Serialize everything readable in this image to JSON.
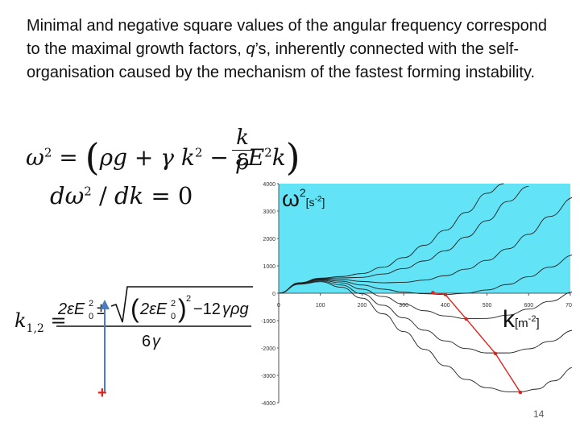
{
  "slide": {
    "paragraph_part1": "Minimal and negative square values of the angular frequency correspond to the maximal growth factors, ",
    "paragraph_q": "q",
    "paragraph_part2": "’s, inherently connected with the self-organisation caused by the mechanism of the fastest forming instability.",
    "page_number": "14",
    "plus_marker": "+"
  },
  "equations": {
    "eq1": "ω² = (ρg + γk² − εE²k) k/ρ",
    "eq2": "dω² / dk = 0",
    "eq3": "k1,2 = [2εE0² ± √((2εE0²)² − 12γρg)] / 6γ"
  },
  "chart_data": {
    "type": "line",
    "y_label_symbol": "ω",
    "y_label_sup": "2",
    "y_label_unit": "[s",
    "y_label_unit_sup": "-2",
    "y_label_unit_close": "]",
    "x_label_symbol": "k",
    "x_label_unit": "[m",
    "x_label_unit_sup": "-2",
    "x_label_unit_close": "]",
    "x_ticks": [
      "0",
      "100",
      "200",
      "300",
      "400",
      "500",
      "600",
      "700"
    ],
    "y_ticks": [
      "4000",
      "3000",
      "2000",
      "1000",
      "0",
      "-1000",
      "-2000",
      "-3000",
      "-4000"
    ],
    "xlim": [
      0,
      700
    ],
    "ylim": [
      -4000,
      4000
    ],
    "colors": {
      "positive_region": "#62e3f6",
      "curves": "#222222",
      "minima": "#e0201c",
      "arrow": "#4a7ec0",
      "plus": "#e0201c"
    },
    "series": [
      {
        "values": [
          [
            0,
            0
          ],
          [
            50,
            380
          ],
          [
            100,
            550
          ],
          [
            150,
            610
          ],
          [
            200,
            720
          ],
          [
            250,
            950
          ],
          [
            300,
            1300
          ],
          [
            350,
            1750
          ],
          [
            400,
            2300
          ],
          [
            450,
            2950
          ],
          [
            500,
            3650
          ],
          [
            540,
            4000
          ]
        ]
      },
      {
        "values": [
          [
            0,
            0
          ],
          [
            50,
            380
          ],
          [
            100,
            540
          ],
          [
            150,
            560
          ],
          [
            200,
            580
          ],
          [
            250,
            700
          ],
          [
            300,
            900
          ],
          [
            350,
            1180
          ],
          [
            400,
            1550
          ],
          [
            450,
            2050
          ],
          [
            500,
            2650
          ],
          [
            550,
            3350
          ],
          [
            600,
            3900
          ]
        ]
      },
      {
        "values": [
          [
            0,
            0
          ],
          [
            50,
            370
          ],
          [
            100,
            520
          ],
          [
            150,
            500
          ],
          [
            200,
            430
          ],
          [
            250,
            380
          ],
          [
            300,
            400
          ],
          [
            350,
            480
          ],
          [
            400,
            640
          ],
          [
            450,
            880
          ],
          [
            500,
            1200
          ],
          [
            550,
            1620
          ],
          [
            600,
            2150
          ],
          [
            650,
            2800
          ],
          [
            710,
            3500
          ]
        ]
      },
      {
        "values": [
          [
            0,
            0
          ],
          [
            50,
            360
          ],
          [
            100,
            500
          ],
          [
            150,
            440
          ],
          [
            200,
            300
          ],
          [
            250,
            150
          ],
          [
            300,
            40
          ],
          [
            350,
            -20
          ],
          [
            400,
            -50
          ],
          [
            450,
            0
          ],
          [
            500,
            120
          ],
          [
            550,
            320
          ],
          [
            600,
            600
          ],
          [
            650,
            950
          ],
          [
            710,
            1400
          ]
        ]
      },
      {
        "values": [
          [
            0,
            0
          ],
          [
            50,
            350
          ],
          [
            100,
            480
          ],
          [
            150,
            380
          ],
          [
            200,
            150
          ],
          [
            250,
            -120
          ],
          [
            300,
            -400
          ],
          [
            350,
            -640
          ],
          [
            400,
            -830
          ],
          [
            450,
            -930
          ],
          [
            500,
            -920
          ],
          [
            550,
            -800
          ],
          [
            600,
            -580
          ],
          [
            650,
            -300
          ],
          [
            710,
            50
          ]
        ]
      },
      {
        "values": [
          [
            0,
            0
          ],
          [
            50,
            340
          ],
          [
            100,
            450
          ],
          [
            150,
            300
          ],
          [
            200,
            -20
          ],
          [
            250,
            -440
          ],
          [
            300,
            -900
          ],
          [
            350,
            -1350
          ],
          [
            400,
            -1740
          ],
          [
            450,
            -2020
          ],
          [
            500,
            -2180
          ],
          [
            550,
            -2180
          ],
          [
            600,
            -2030
          ],
          [
            650,
            -1760
          ],
          [
            710,
            -1350
          ]
        ]
      },
      {
        "values": [
          [
            0,
            0
          ],
          [
            50,
            330
          ],
          [
            100,
            420
          ],
          [
            150,
            220
          ],
          [
            200,
            -180
          ],
          [
            250,
            -750
          ],
          [
            300,
            -1400
          ],
          [
            350,
            -2050
          ],
          [
            400,
            -2650
          ],
          [
            450,
            -3150
          ],
          [
            500,
            -3450
          ],
          [
            550,
            -3600
          ],
          [
            580,
            -3600
          ],
          [
            620,
            -3500
          ],
          [
            660,
            -3200
          ],
          [
            710,
            -2700
          ]
        ]
      }
    ],
    "minima_points": [
      [
        370,
        20
      ],
      [
        400,
        -50
      ],
      [
        450,
        -940
      ],
      [
        520,
        -2200
      ],
      [
        580,
        -3620
      ]
    ],
    "grid": false
  }
}
